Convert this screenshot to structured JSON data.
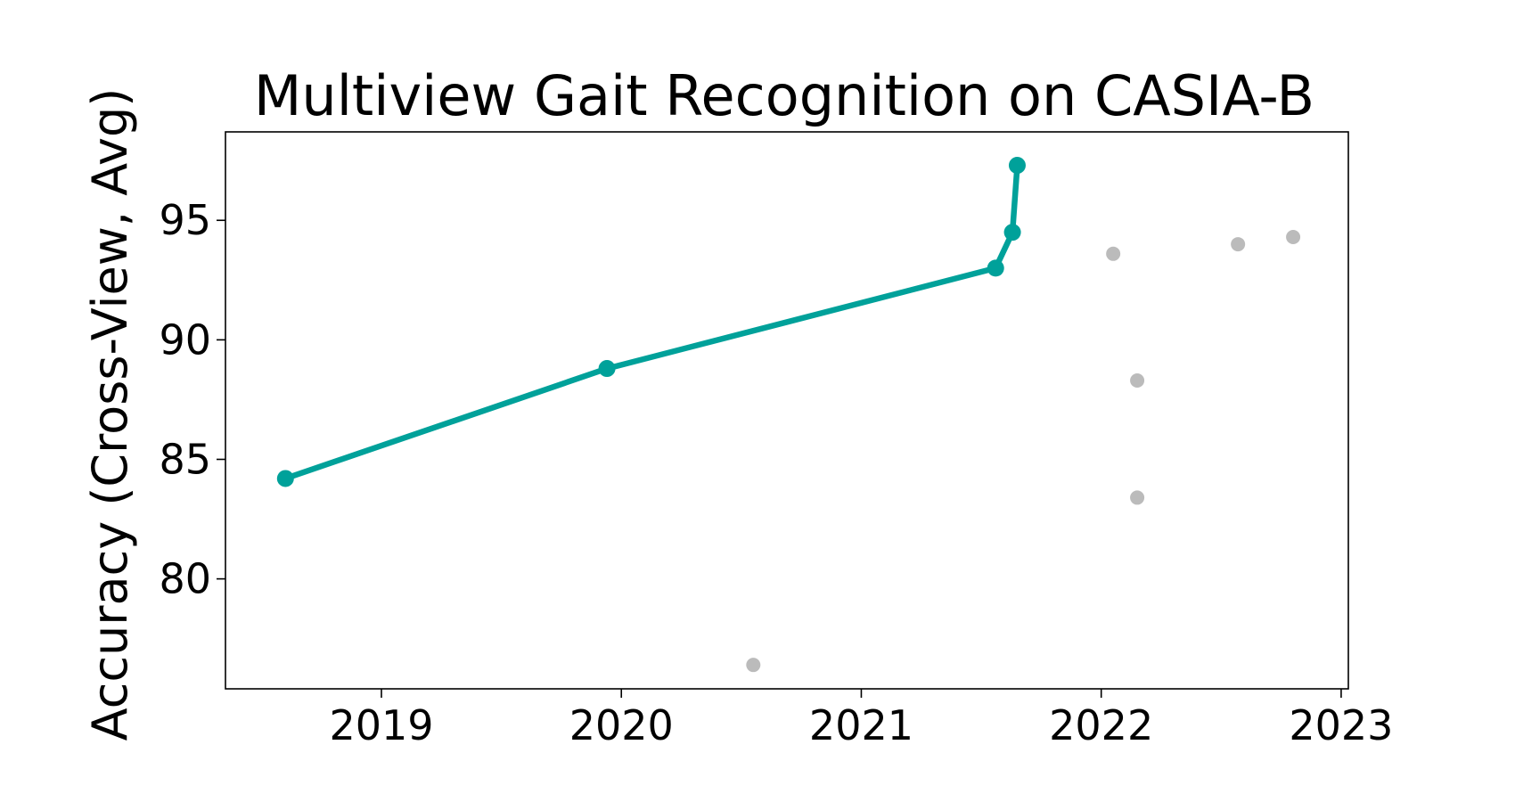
{
  "chart_data": {
    "type": "scatter",
    "title": "Multiview Gait Recognition on CASIA-B",
    "xlabel": "",
    "ylabel": "Accuracy (Cross-View, Avg)",
    "xlim": [
      2018.35,
      2023.03
    ],
    "ylim": [
      75.4,
      98.7
    ],
    "x_ticks": [
      2019,
      2020,
      2021,
      2022,
      2023
    ],
    "y_ticks": [
      80,
      85,
      90,
      95
    ],
    "grid": false,
    "series": [
      {
        "type": "line",
        "color": "#00a19a",
        "points": [
          {
            "x": 2018.6,
            "y": 84.2
          },
          {
            "x": 2019.94,
            "y": 88.8
          },
          {
            "x": 2021.56,
            "y": 93.0
          },
          {
            "x": 2021.63,
            "y": 94.5
          },
          {
            "x": 2021.65,
            "y": 97.3
          }
        ]
      },
      {
        "type": "scatter",
        "color": "#bbbbbb",
        "points": [
          {
            "x": 2020.55,
            "y": 76.4
          },
          {
            "x": 2022.05,
            "y": 93.6
          },
          {
            "x": 2022.15,
            "y": 88.3
          },
          {
            "x": 2022.15,
            "y": 83.4
          },
          {
            "x": 2022.57,
            "y": 94.0
          },
          {
            "x": 2022.8,
            "y": 94.3
          }
        ]
      }
    ]
  }
}
